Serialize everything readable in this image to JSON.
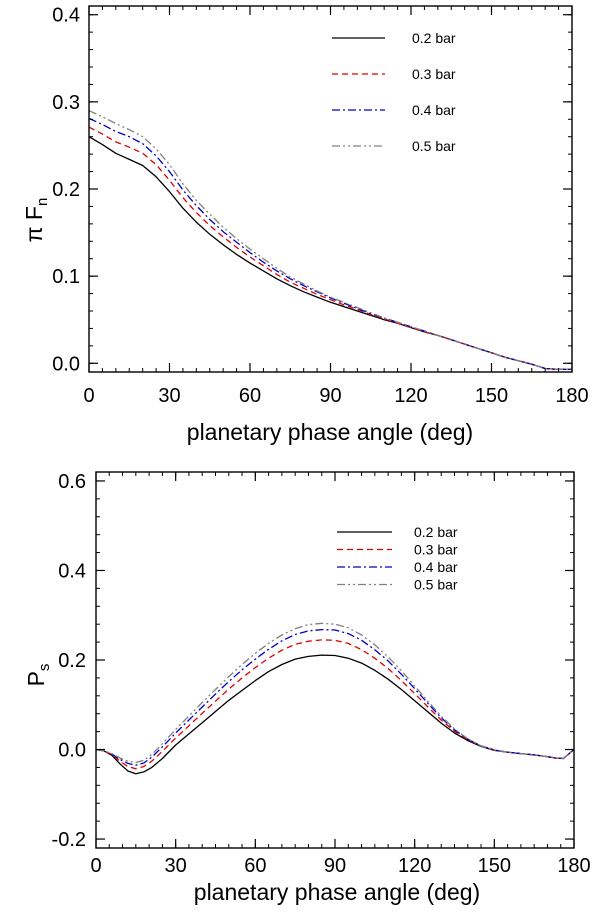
{
  "chart_data": [
    {
      "type": "line",
      "xlabel": "planetary phase angle (deg)",
      "ylabel": "π F",
      "ylabel_subscript": "n",
      "xlim": [
        0,
        180
      ],
      "ylim": [
        -0.01,
        0.41
      ],
      "xticks": [
        0,
        30,
        60,
        90,
        120,
        150,
        180
      ],
      "xtick_labels": [
        "0",
        "30",
        "60",
        "90",
        "120",
        "150",
        "180"
      ],
      "yticks": [
        0.0,
        0.1,
        0.2,
        0.3,
        0.4
      ],
      "ytick_labels": [
        "0.0",
        "0.1",
        "0.2",
        "0.3",
        "0.4"
      ],
      "legend_position": "top-right",
      "x": [
        0,
        5,
        10,
        15,
        20,
        25,
        30,
        35,
        40,
        45,
        50,
        55,
        60,
        65,
        70,
        75,
        80,
        85,
        90,
        95,
        100,
        105,
        110,
        115,
        120,
        125,
        130,
        135,
        140,
        145,
        150,
        155,
        160,
        165,
        170,
        175,
        180
      ],
      "series": [
        {
          "name": "0.2 bar",
          "color": "#000000",
          "dash": "solid",
          "values": [
            0.26,
            0.251,
            0.241,
            0.234,
            0.227,
            0.214,
            0.197,
            0.178,
            0.162,
            0.148,
            0.136,
            0.125,
            0.115,
            0.106,
            0.097,
            0.089,
            0.082,
            0.076,
            0.07,
            0.065,
            0.06,
            0.055,
            0.05,
            0.046,
            0.041,
            0.036,
            0.032,
            0.027,
            0.022,
            0.017,
            0.012,
            0.007,
            0.003,
            -0.001,
            -0.006,
            -0.007,
            -0.007
          ]
        },
        {
          "name": "0.3 bar",
          "color": "#e00000",
          "dash": "dash",
          "values": [
            0.271,
            0.263,
            0.254,
            0.248,
            0.241,
            0.228,
            0.21,
            0.19,
            0.173,
            0.158,
            0.145,
            0.133,
            0.122,
            0.112,
            0.102,
            0.093,
            0.086,
            0.079,
            0.073,
            0.067,
            0.062,
            0.056,
            0.051,
            0.046,
            0.041,
            0.036,
            0.032,
            0.027,
            0.022,
            0.017,
            0.012,
            0.007,
            0.003,
            -0.001,
            -0.006,
            -0.007,
            -0.007
          ]
        },
        {
          "name": "0.4 bar",
          "color": "#0000c8",
          "dash": "dashdot",
          "values": [
            0.281,
            0.274,
            0.266,
            0.26,
            0.252,
            0.238,
            0.22,
            0.199,
            0.181,
            0.165,
            0.151,
            0.139,
            0.127,
            0.116,
            0.106,
            0.097,
            0.089,
            0.082,
            0.075,
            0.069,
            0.063,
            0.057,
            0.052,
            0.047,
            0.042,
            0.037,
            0.032,
            0.027,
            0.022,
            0.017,
            0.012,
            0.007,
            0.003,
            -0.001,
            -0.006,
            -0.007,
            -0.007
          ]
        },
        {
          "name": "0.5 bar",
          "color": "#808080",
          "dash": "dashdotdot",
          "values": [
            0.29,
            0.283,
            0.275,
            0.268,
            0.26,
            0.246,
            0.228,
            0.206,
            0.187,
            0.171,
            0.156,
            0.143,
            0.131,
            0.12,
            0.109,
            0.099,
            0.091,
            0.083,
            0.076,
            0.07,
            0.064,
            0.058,
            0.052,
            0.047,
            0.042,
            0.037,
            0.032,
            0.027,
            0.022,
            0.017,
            0.012,
            0.007,
            0.003,
            -0.001,
            -0.006,
            -0.007,
            -0.007
          ]
        }
      ]
    },
    {
      "type": "line",
      "xlabel": "planetary phase angle (deg)",
      "ylabel": "P",
      "ylabel_subscript": "s",
      "xlim": [
        0,
        180
      ],
      "ylim": [
        -0.22,
        0.62
      ],
      "xticks": [
        0,
        30,
        60,
        90,
        120,
        150,
        180
      ],
      "xtick_labels": [
        "0",
        "30",
        "60",
        "90",
        "120",
        "150",
        "180"
      ],
      "yticks": [
        -0.2,
        0.0,
        0.2,
        0.4,
        0.6
      ],
      "ytick_labels": [
        "-0.2",
        "0.0",
        "0.2",
        "0.4",
        "0.6"
      ],
      "legend_position": "top-right",
      "x": [
        0,
        3,
        6,
        9,
        12,
        15,
        18,
        21,
        25,
        30,
        35,
        40,
        45,
        50,
        55,
        60,
        65,
        70,
        75,
        80,
        85,
        90,
        95,
        100,
        105,
        110,
        115,
        120,
        125,
        130,
        135,
        140,
        145,
        150,
        155,
        160,
        165,
        170,
        173,
        176,
        178,
        180
      ],
      "series": [
        {
          "name": "0.2 bar",
          "color": "#000000",
          "dash": "solid",
          "values": [
            0.0,
            -0.003,
            -0.013,
            -0.032,
            -0.048,
            -0.054,
            -0.05,
            -0.04,
            -0.02,
            0.01,
            0.035,
            0.06,
            0.085,
            0.11,
            0.132,
            0.154,
            0.174,
            0.19,
            0.202,
            0.208,
            0.211,
            0.21,
            0.204,
            0.193,
            0.177,
            0.157,
            0.134,
            0.109,
            0.084,
            0.059,
            0.037,
            0.02,
            0.007,
            -0.002,
            -0.006,
            -0.009,
            -0.012,
            -0.016,
            -0.019,
            -0.02,
            -0.01,
            0.0
          ]
        },
        {
          "name": "0.3 bar",
          "color": "#e00000",
          "dash": "dash",
          "values": [
            0.0,
            -0.003,
            -0.011,
            -0.026,
            -0.038,
            -0.043,
            -0.038,
            -0.026,
            -0.004,
            0.026,
            0.053,
            0.081,
            0.108,
            0.135,
            0.16,
            0.183,
            0.204,
            0.222,
            0.235,
            0.242,
            0.245,
            0.244,
            0.237,
            0.223,
            0.204,
            0.181,
            0.154,
            0.125,
            0.095,
            0.066,
            0.041,
            0.022,
            0.008,
            -0.001,
            -0.006,
            -0.009,
            -0.012,
            -0.016,
            -0.019,
            -0.02,
            -0.01,
            0.0
          ]
        },
        {
          "name": "0.4 bar",
          "color": "#0000c8",
          "dash": "dashdot",
          "values": [
            0.0,
            -0.003,
            -0.01,
            -0.022,
            -0.031,
            -0.035,
            -0.03,
            -0.017,
            0.006,
            0.037,
            0.066,
            0.095,
            0.124,
            0.152,
            0.178,
            0.202,
            0.224,
            0.243,
            0.257,
            0.265,
            0.268,
            0.267,
            0.259,
            0.244,
            0.223,
            0.198,
            0.168,
            0.136,
            0.103,
            0.071,
            0.044,
            0.023,
            0.008,
            -0.001,
            -0.006,
            -0.009,
            -0.012,
            -0.016,
            -0.019,
            -0.02,
            -0.01,
            0.0
          ]
        },
        {
          "name": "0.5 bar",
          "color": "#808080",
          "dash": "dashdotdot",
          "values": [
            0.0,
            -0.003,
            -0.009,
            -0.019,
            -0.026,
            -0.029,
            -0.024,
            -0.011,
            0.013,
            0.045,
            0.075,
            0.105,
            0.134,
            0.163,
            0.19,
            0.215,
            0.237,
            0.256,
            0.27,
            0.279,
            0.282,
            0.28,
            0.272,
            0.256,
            0.234,
            0.207,
            0.176,
            0.142,
            0.108,
            0.074,
            0.046,
            0.024,
            0.008,
            -0.001,
            -0.006,
            -0.009,
            -0.012,
            -0.016,
            -0.019,
            -0.02,
            -0.01,
            0.0
          ]
        }
      ]
    }
  ]
}
